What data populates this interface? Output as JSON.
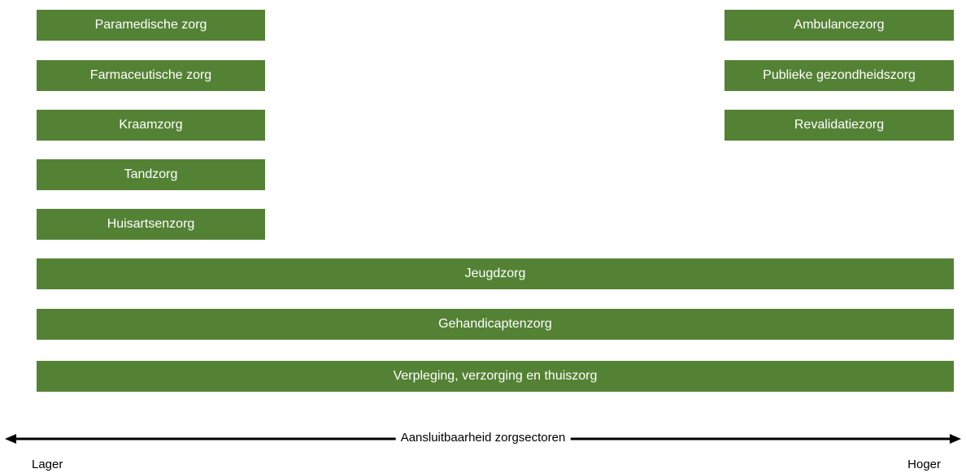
{
  "left_column": [
    "Paramedische zorg",
    "Farmaceutische zorg",
    "Kraamzorg",
    "Tandzorg",
    "Huisartsenzorg"
  ],
  "right_column": [
    "Ambulancezorg",
    "Publieke gezondheidszorg",
    "Revalidatiezorg"
  ],
  "full_width": [
    "Jeugdzorg",
    "Gehandicaptenzorg",
    "Verpleging, verzorging en thuiszorg"
  ],
  "axis": {
    "title": "Aansluitbaarheid zorgsectoren",
    "low_label": "Lager",
    "high_label": "Hoger"
  },
  "colors": {
    "box_fill": "#548235",
    "box_text": "#ffffff",
    "arrow": "#000000"
  }
}
